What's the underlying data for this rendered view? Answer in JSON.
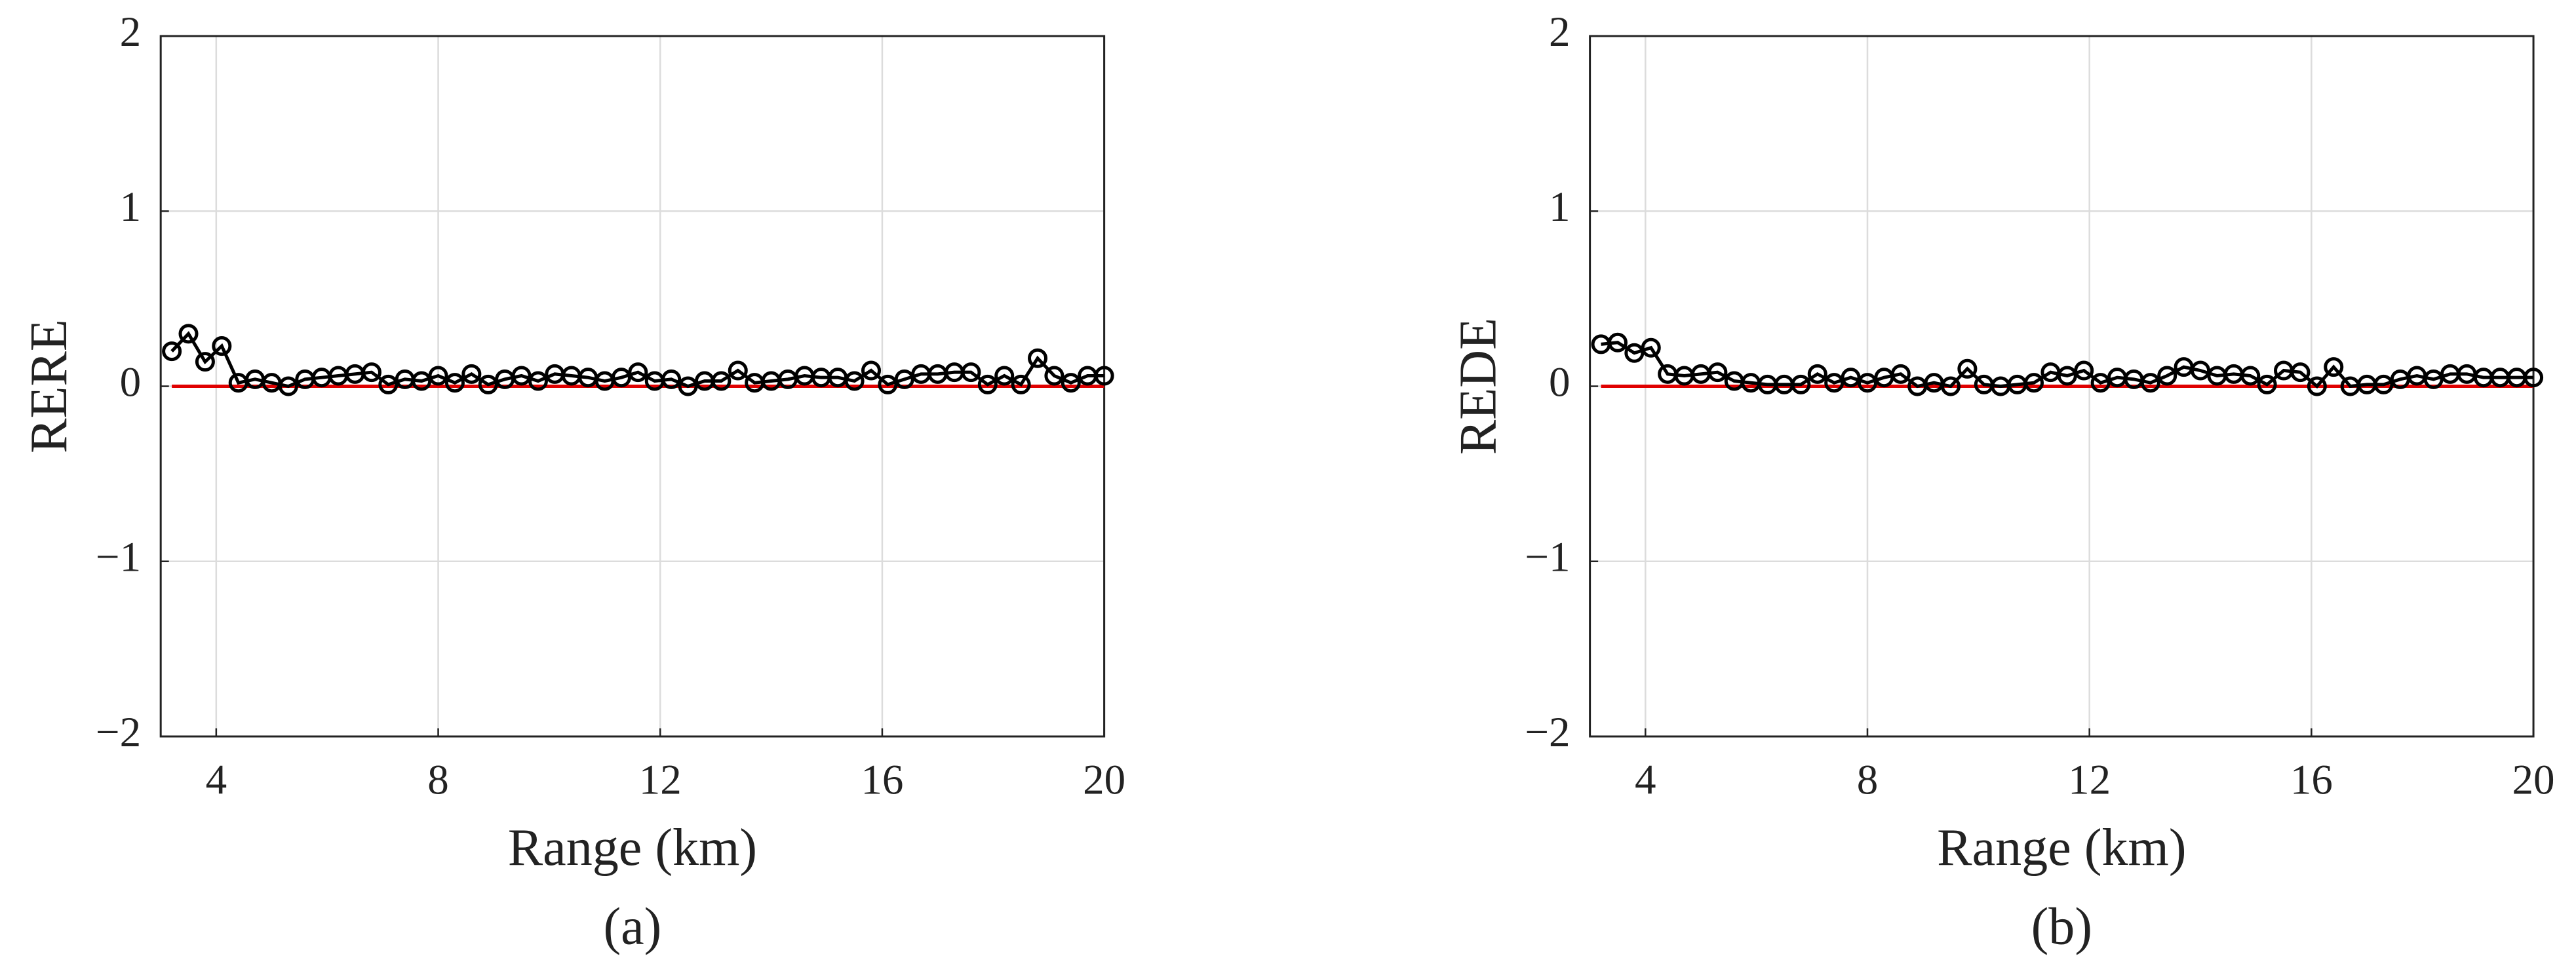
{
  "chart_data": [
    {
      "type": "line",
      "y_label": "RERE",
      "x_label": "Range (km)",
      "caption": "(a)",
      "xlim": [
        3,
        20
      ],
      "ylim": [
        -2,
        2
      ],
      "xticks": [
        4,
        8,
        12,
        16,
        20
      ],
      "yticks": [
        {
          "value": -2,
          "label": "−2"
        },
        {
          "value": -1,
          "label": "−1"
        },
        0,
        1,
        2
      ],
      "grid": true,
      "reference_line": {
        "value": 0,
        "color": "#e00000"
      },
      "x": [
        3.2,
        3.5,
        3.8,
        4.1,
        4.4,
        4.7,
        5,
        5.3,
        5.6,
        5.9,
        6.2,
        6.5,
        6.8,
        7.1,
        7.4,
        7.7,
        8,
        8.3,
        8.6,
        8.9,
        9.2,
        9.5,
        9.8,
        10.1,
        10.4,
        10.7,
        11,
        11.3,
        11.6,
        11.9,
        12.2,
        12.5,
        12.8,
        13.1,
        13.4,
        13.7,
        14,
        14.3,
        14.6,
        14.9,
        15.2,
        15.5,
        15.8,
        16.1,
        16.4,
        16.7,
        17,
        17.3,
        17.6,
        17.9,
        18.2,
        18.5,
        18.8,
        19.1,
        19.4,
        19.7,
        20
      ],
      "series": [
        {
          "color": "#000000",
          "values": [
            0.2,
            0.3,
            0.14,
            0.23,
            0.02,
            0.04,
            0.02,
            0.0,
            0.04,
            0.05,
            0.06,
            0.07,
            0.08,
            0.01,
            0.04,
            0.03,
            0.06,
            0.02,
            0.07,
            0.01,
            0.04,
            0.06,
            0.03,
            0.07,
            0.06,
            0.05,
            0.03,
            0.05,
            0.08,
            0.03,
            0.04,
            0.0,
            0.03,
            0.03,
            0.09,
            0.02,
            0.03,
            0.04,
            0.06,
            0.05,
            0.05,
            0.03,
            0.09,
            0.01,
            0.04,
            0.07,
            0.07,
            0.08,
            0.08,
            0.01,
            0.06,
            0.01,
            0.16,
            0.06,
            0.02,
            0.06,
            0.06
          ]
        }
      ]
    },
    {
      "type": "line",
      "y_label": "REDE",
      "x_label": "Range (km)",
      "caption": "(b)",
      "xlim": [
        3,
        20
      ],
      "ylim": [
        -2,
        2
      ],
      "xticks": [
        4,
        8,
        12,
        16,
        20
      ],
      "yticks": [
        {
          "value": -2,
          "label": "−2"
        },
        {
          "value": -1,
          "label": "−1"
        },
        0,
        1,
        2
      ],
      "grid": true,
      "reference_line": {
        "value": 0,
        "color": "#e00000"
      },
      "x": [
        3.2,
        3.5,
        3.8,
        4.1,
        4.4,
        4.7,
        5,
        5.3,
        5.6,
        5.9,
        6.2,
        6.5,
        6.8,
        7.1,
        7.4,
        7.7,
        8,
        8.3,
        8.6,
        8.9,
        9.2,
        9.5,
        9.8,
        10.1,
        10.4,
        10.7,
        11,
        11.3,
        11.6,
        11.9,
        12.2,
        12.5,
        12.8,
        13.1,
        13.4,
        13.7,
        14,
        14.3,
        14.6,
        14.9,
        15.2,
        15.5,
        15.8,
        16.1,
        16.4,
        16.7,
        17,
        17.3,
        17.6,
        17.9,
        18.2,
        18.5,
        18.8,
        19.1,
        19.4,
        19.7,
        20
      ],
      "series": [
        {
          "color": "#000000",
          "values": [
            0.24,
            0.25,
            0.19,
            0.22,
            0.07,
            0.06,
            0.07,
            0.08,
            0.03,
            0.02,
            0.01,
            0.01,
            0.01,
            0.07,
            0.02,
            0.05,
            0.02,
            0.05,
            0.07,
            0.0,
            0.02,
            0.0,
            0.1,
            0.01,
            0.0,
            0.01,
            0.02,
            0.08,
            0.06,
            0.09,
            0.02,
            0.05,
            0.04,
            0.02,
            0.06,
            0.11,
            0.09,
            0.06,
            0.07,
            0.06,
            0.01,
            0.09,
            0.08,
            0.0,
            0.11,
            0.0,
            0.01,
            0.01,
            0.04,
            0.06,
            0.04,
            0.07,
            0.07,
            0.05,
            0.05,
            0.05,
            0.05
          ]
        }
      ]
    }
  ]
}
